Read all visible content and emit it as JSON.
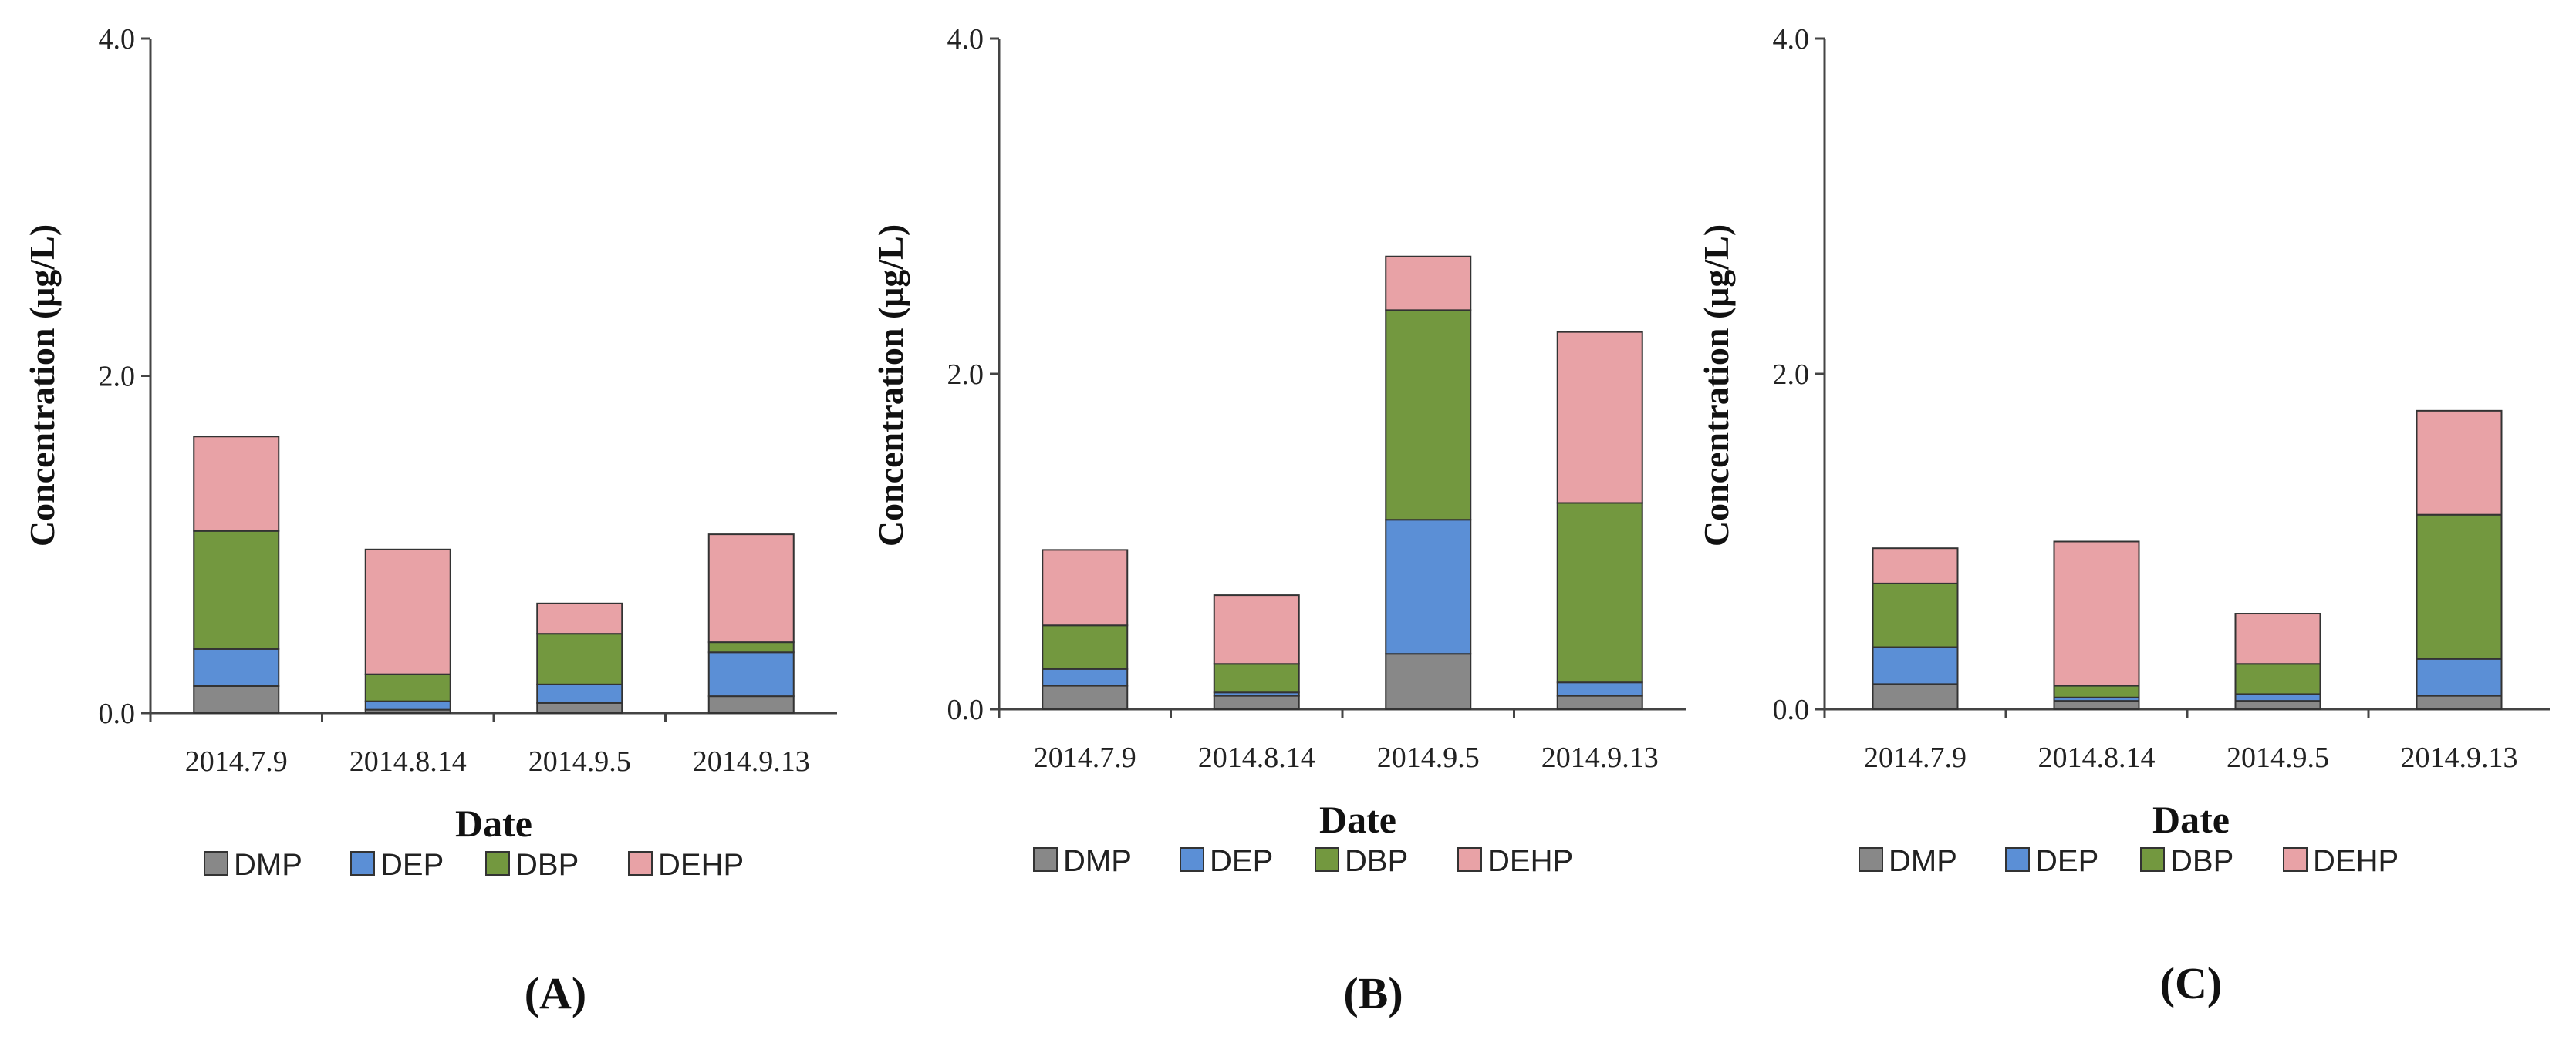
{
  "chart_data": [
    {
      "type": "bar",
      "stacked": true,
      "panel_label": "(A)",
      "xlabel": "Date",
      "ylabel": "Concentration (μg/L)",
      "ylim": [
        0,
        4
      ],
      "yticks": [
        "0.0",
        "2.0",
        "4.0"
      ],
      "categories": [
        "2014.7.9",
        "2014.8.14",
        "2014.9.5",
        "2014.9.13"
      ],
      "series": [
        {
          "name": "DMP",
          "values": [
            0.16,
            0.02,
            0.06,
            0.1
          ]
        },
        {
          "name": "DEP",
          "values": [
            0.22,
            0.05,
            0.11,
            0.26
          ]
        },
        {
          "name": "DBP",
          "values": [
            0.7,
            0.16,
            0.3,
            0.06
          ]
        },
        {
          "name": "DEHP",
          "values": [
            0.56,
            0.74,
            0.18,
            0.64
          ]
        }
      ]
    },
    {
      "type": "bar",
      "stacked": true,
      "panel_label": "(B)",
      "xlabel": "Date",
      "ylabel": "Concentration (μg/L)",
      "ylim": [
        0,
        4
      ],
      "yticks": [
        "0.0",
        "2.0",
        "4.0"
      ],
      "categories": [
        "2014.7.9",
        "2014.8.14",
        "2014.9.5",
        "2014.9.13"
      ],
      "series": [
        {
          "name": "DMP",
          "values": [
            0.14,
            0.08,
            0.33,
            0.08
          ]
        },
        {
          "name": "DEP",
          "values": [
            0.1,
            0.02,
            0.8,
            0.08
          ]
        },
        {
          "name": "DBP",
          "values": [
            0.26,
            0.17,
            1.25,
            1.07
          ]
        },
        {
          "name": "DEHP",
          "values": [
            0.45,
            0.41,
            0.32,
            1.02
          ]
        }
      ]
    },
    {
      "type": "bar",
      "stacked": true,
      "panel_label": "(C)",
      "xlabel": "Date",
      "ylabel": "Concentration (μg/L)",
      "ylim": [
        0,
        4
      ],
      "yticks": [
        "0.0",
        "2.0",
        "4.0"
      ],
      "categories": [
        "2014.7.9",
        "2014.8.14",
        "2014.9.5",
        "2014.9.13"
      ],
      "series": [
        {
          "name": "DMP",
          "values": [
            0.15,
            0.05,
            0.05,
            0.08
          ]
        },
        {
          "name": "DEP",
          "values": [
            0.22,
            0.02,
            0.04,
            0.22
          ]
        },
        {
          "name": "DBP",
          "values": [
            0.38,
            0.07,
            0.18,
            0.86
          ]
        },
        {
          "name": "DEHP",
          "values": [
            0.21,
            0.86,
            0.3,
            0.62
          ]
        }
      ]
    }
  ],
  "colors": {
    "DMP": "#888888",
    "DEP": "#5b8fd6",
    "DBP": "#73983f",
    "DEHP": "#e8a2a6"
  }
}
